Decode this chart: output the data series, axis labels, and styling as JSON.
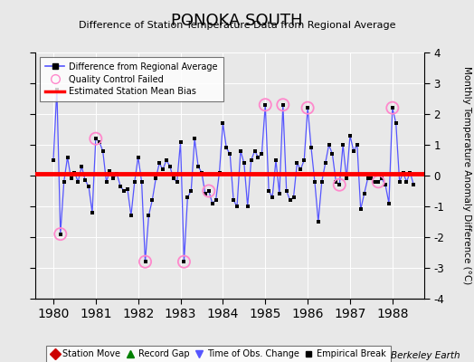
{
  "title": "PONOKA SOUTH",
  "subtitle": "Difference of Station Temperature Data from Regional Average",
  "ylabel_right": "Monthly Temperature Anomaly Difference (°C)",
  "credit": "Berkeley Earth",
  "xlim": [
    1979.58,
    1988.75
  ],
  "ylim": [
    -4,
    4
  ],
  "yticks": [
    -4,
    -3,
    -2,
    -1,
    0,
    1,
    2,
    3,
    4
  ],
  "xticks": [
    1980,
    1981,
    1982,
    1983,
    1984,
    1985,
    1986,
    1987,
    1988
  ],
  "bias_value": 0.05,
  "background_color": "#e8e8e8",
  "plot_bg_color": "#e8e8e8",
  "line_color": "#5555ff",
  "bias_color": "#ff0000",
  "qc_color": "#ff88cc",
  "data_x": [
    1980.0,
    1980.083,
    1980.167,
    1980.25,
    1980.333,
    1980.417,
    1980.5,
    1980.583,
    1980.667,
    1980.75,
    1980.833,
    1980.917,
    1981.0,
    1981.083,
    1981.167,
    1981.25,
    1981.333,
    1981.417,
    1981.5,
    1981.583,
    1981.667,
    1981.75,
    1981.833,
    1981.917,
    1982.0,
    1982.083,
    1982.167,
    1982.25,
    1982.333,
    1982.417,
    1982.5,
    1982.583,
    1982.667,
    1982.75,
    1982.833,
    1982.917,
    1983.0,
    1983.083,
    1983.167,
    1983.25,
    1983.333,
    1983.417,
    1983.5,
    1983.583,
    1983.667,
    1983.75,
    1983.833,
    1983.917,
    1984.0,
    1984.083,
    1984.167,
    1984.25,
    1984.333,
    1984.417,
    1984.5,
    1984.583,
    1984.667,
    1984.75,
    1984.833,
    1984.917,
    1985.0,
    1985.083,
    1985.167,
    1985.25,
    1985.333,
    1985.417,
    1985.5,
    1985.583,
    1985.667,
    1985.75,
    1985.833,
    1985.917,
    1986.0,
    1986.083,
    1986.167,
    1986.25,
    1986.333,
    1986.417,
    1986.5,
    1986.583,
    1986.667,
    1986.75,
    1986.833,
    1986.917,
    1987.0,
    1987.083,
    1987.167,
    1987.25,
    1987.333,
    1987.417,
    1987.5,
    1987.583,
    1987.667,
    1987.75,
    1987.833,
    1987.917,
    1988.0,
    1988.083,
    1988.167,
    1988.25,
    1988.333,
    1988.417,
    1988.5
  ],
  "data_y": [
    0.5,
    2.8,
    -1.9,
    -0.2,
    0.6,
    -0.1,
    0.1,
    -0.2,
    0.3,
    -0.15,
    -0.35,
    -1.2,
    1.2,
    1.1,
    0.8,
    -0.2,
    0.15,
    -0.1,
    0.05,
    -0.35,
    -0.5,
    -0.45,
    -1.3,
    -0.2,
    0.6,
    -0.2,
    -2.8,
    -1.3,
    -0.8,
    -0.1,
    0.4,
    0.2,
    0.5,
    0.3,
    -0.1,
    -0.2,
    1.1,
    -2.8,
    -0.7,
    -0.5,
    1.2,
    0.3,
    0.1,
    -0.6,
    -0.5,
    -0.9,
    -0.8,
    0.1,
    1.7,
    0.9,
    0.7,
    -0.8,
    -1.0,
    0.8,
    0.4,
    -1.0,
    0.5,
    0.8,
    0.6,
    0.7,
    2.3,
    -0.5,
    -0.7,
    0.5,
    -0.6,
    2.3,
    -0.5,
    -0.8,
    -0.7,
    0.4,
    0.2,
    0.5,
    2.2,
    0.9,
    -0.2,
    -1.5,
    -0.2,
    0.4,
    1.0,
    0.7,
    -0.2,
    -0.3,
    1.0,
    -0.1,
    1.3,
    0.8,
    1.0,
    -1.1,
    -0.6,
    -0.1,
    -0.1,
    -0.2,
    -0.2,
    -0.1,
    -0.3,
    -0.9,
    2.2,
    1.7,
    -0.2,
    0.1,
    -0.2,
    0.1,
    -0.3
  ],
  "qc_failed_indices": [
    2,
    12,
    26,
    37,
    44,
    60,
    65,
    72,
    81,
    92,
    96
  ]
}
